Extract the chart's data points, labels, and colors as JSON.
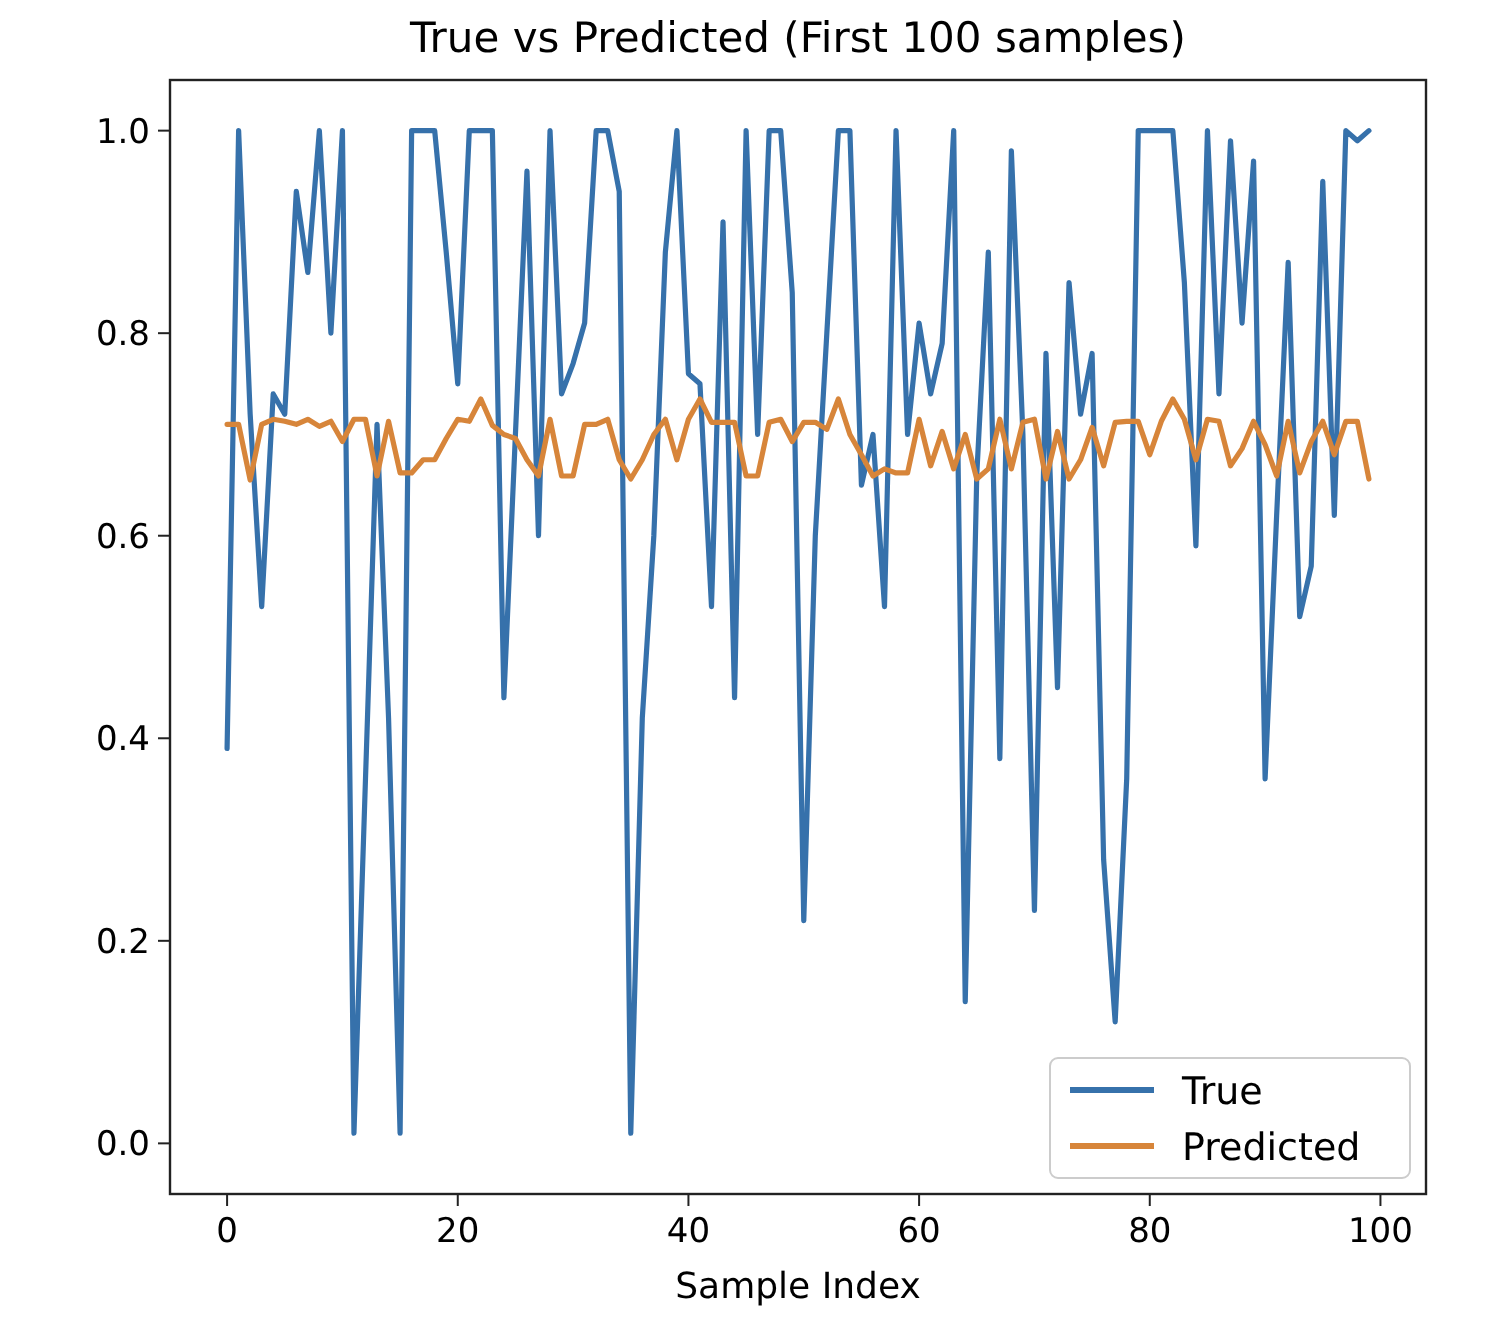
{
  "chart_data": {
    "type": "line",
    "title": "True vs Predicted (First 100 samples)",
    "xlabel": "Sample Index",
    "x": [
      0,
      1,
      2,
      3,
      4,
      5,
      6,
      7,
      8,
      9,
      10,
      11,
      12,
      13,
      14,
      15,
      16,
      17,
      18,
      19,
      20,
      21,
      22,
      23,
      24,
      25,
      26,
      27,
      28,
      29,
      30,
      31,
      32,
      33,
      34,
      35,
      36,
      37,
      38,
      39,
      40,
      41,
      42,
      43,
      44,
      45,
      46,
      47,
      48,
      49,
      50,
      51,
      52,
      53,
      54,
      55,
      56,
      57,
      58,
      59,
      60,
      61,
      62,
      63,
      64,
      65,
      66,
      67,
      68,
      69,
      70,
      71,
      72,
      73,
      74,
      75,
      76,
      77,
      78,
      79,
      80,
      81,
      82,
      83,
      84,
      85,
      86,
      87,
      88,
      89,
      90,
      91,
      92,
      93,
      94,
      95,
      96,
      97,
      98,
      99
    ],
    "series": [
      {
        "name": "True",
        "color": "#3671ab",
        "values": [
          0.39,
          1.0,
          0.72,
          0.53,
          0.74,
          0.72,
          0.94,
          0.86,
          1.0,
          0.8,
          1.0,
          0.01,
          0.36,
          0.71,
          0.42,
          0.01,
          1.0,
          1.0,
          1.0,
          0.88,
          0.75,
          1.0,
          1.0,
          1.0,
          0.44,
          0.7,
          0.96,
          0.6,
          1.0,
          0.74,
          0.77,
          0.81,
          1.0,
          1.0,
          0.94,
          0.01,
          0.42,
          0.6,
          0.88,
          1.0,
          0.76,
          0.75,
          0.53,
          0.91,
          0.44,
          1.0,
          0.7,
          1.0,
          1.0,
          0.84,
          0.22,
          0.6,
          0.8,
          1.0,
          1.0,
          0.65,
          0.7,
          0.53,
          1.0,
          0.7,
          0.81,
          0.74,
          0.79,
          1.0,
          0.14,
          0.66,
          0.88,
          0.38,
          0.98,
          0.7,
          0.23,
          0.78,
          0.45,
          0.85,
          0.72,
          0.78,
          0.28,
          0.12,
          0.36,
          1.0,
          1.0,
          1.0,
          1.0,
          0.85,
          0.59,
          1.0,
          0.74,
          0.99,
          0.81,
          0.97,
          0.36,
          0.62,
          0.87,
          0.52,
          0.57,
          0.95,
          0.62,
          1.0,
          0.99,
          1.0
        ]
      },
      {
        "name": "Predicted",
        "color": "#d7853a",
        "values": [
          0.71,
          0.71,
          0.655,
          0.71,
          0.715,
          0.713,
          0.71,
          0.715,
          0.708,
          0.713,
          0.693,
          0.715,
          0.715,
          0.659,
          0.713,
          0.662,
          0.662,
          0.675,
          0.675,
          0.696,
          0.715,
          0.713,
          0.735,
          0.709,
          0.7,
          0.696,
          0.675,
          0.659,
          0.715,
          0.659,
          0.659,
          0.71,
          0.71,
          0.715,
          0.675,
          0.656,
          0.675,
          0.7,
          0.715,
          0.675,
          0.715,
          0.735,
          0.712,
          0.712,
          0.712,
          0.659,
          0.659,
          0.712,
          0.715,
          0.693,
          0.712,
          0.712,
          0.705,
          0.735,
          0.7,
          0.68,
          0.659,
          0.666,
          0.662,
          0.662,
          0.715,
          0.669,
          0.703,
          0.666,
          0.7,
          0.656,
          0.666,
          0.715,
          0.666,
          0.712,
          0.715,
          0.656,
          0.703,
          0.656,
          0.675,
          0.707,
          0.669,
          0.712,
          0.713,
          0.713,
          0.68,
          0.713,
          0.735,
          0.715,
          0.675,
          0.715,
          0.713,
          0.669,
          0.686,
          0.713,
          0.69,
          0.659,
          0.713,
          0.662,
          0.693,
          0.713,
          0.68,
          0.713,
          0.713,
          0.656
        ]
      }
    ],
    "xlim": [
      -4.95,
      103.95
    ],
    "ylim": [
      -0.05,
      1.05
    ],
    "xticks": [
      0,
      20,
      40,
      60,
      80,
      100
    ],
    "yticks": [
      {
        "value": 0,
        "label": "0.0"
      },
      {
        "value": 0.2,
        "label": "0.2"
      },
      {
        "value": 0.4,
        "label": "0.4"
      },
      {
        "value": 0.6,
        "label": "0.6"
      },
      {
        "value": 0.8,
        "label": "0.8"
      },
      {
        "value": 1,
        "label": "1.0"
      }
    ],
    "legend": "bottom right",
    "grid": false,
    "line_style": "solid",
    "marker": "none"
  }
}
